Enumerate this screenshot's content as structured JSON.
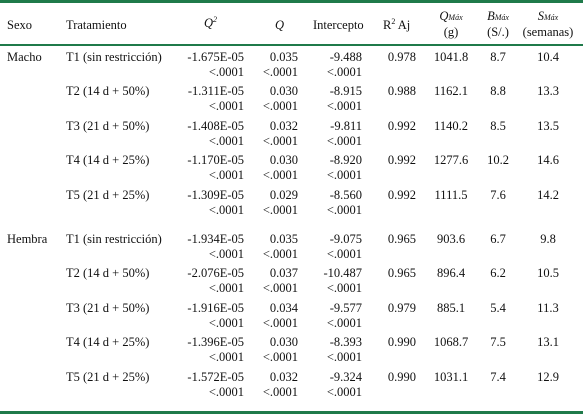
{
  "header": {
    "sexo": "Sexo",
    "tratamiento": "Tratamiento",
    "q2": "Q",
    "q2_sup": "2",
    "q": "Q",
    "intercepto": "Intercepto",
    "r2": "R",
    "r2_sup": "2",
    "r2_suffix": " Aj",
    "qmax": "Q",
    "qmax_sub": "Máx",
    "qmax_unit": "(g)",
    "bmax": "B",
    "bmax_sub": "Máx",
    "bmax_unit": "(S/.)",
    "smax": "S",
    "smax_sub": "Máx",
    "smax_unit": "(semanas)"
  },
  "groups": [
    {
      "sexo": "Macho",
      "rows": [
        {
          "tratamiento": "T1 (sin restricción)",
          "q2": "-1.675E-05",
          "q2_p": "<.0001",
          "q": "0.035",
          "q_p": "<.0001",
          "intercepto": "-9.488",
          "intercepto_p": "<.0001",
          "r2": "0.978",
          "qmax": "1041.8",
          "bmax": "8.7",
          "smax": "10.4"
        },
        {
          "tratamiento": "T2 (14 d + 50%)",
          "q2": "-1.311E-05",
          "q2_p": "<.0001",
          "q": "0.030",
          "q_p": "<.0001",
          "intercepto": "-8.915",
          "intercepto_p": "<.0001",
          "r2": "0.988",
          "qmax": "1162.1",
          "bmax": "8.8",
          "smax": "13.3"
        },
        {
          "tratamiento": "T3 (21 d + 50%)",
          "q2": "-1.408E-05",
          "q2_p": "<.0001",
          "q": "0.032",
          "q_p": "<.0001",
          "intercepto": "-9.811",
          "intercepto_p": "<.0001",
          "r2": "0.992",
          "qmax": "1140.2",
          "bmax": "8.5",
          "smax": "13.5"
        },
        {
          "tratamiento": "T4 (14 d + 25%)",
          "q2": "-1.170E-05",
          "q2_p": "<.0001",
          "q": "0.030",
          "q_p": "<.0001",
          "intercepto": "-8.920",
          "intercepto_p": "<.0001",
          "r2": "0.992",
          "qmax": "1277.6",
          "bmax": "10.2",
          "smax": "14.6"
        },
        {
          "tratamiento": "T5 (21 d + 25%)",
          "q2": "-1.309E-05",
          "q2_p": "<.0001",
          "q": "0.029",
          "q_p": "<.0001",
          "intercepto": "-8.560",
          "intercepto_p": "<.0001",
          "r2": "0.992",
          "qmax": "1111.5",
          "bmax": "7.6",
          "smax": "14.2"
        }
      ]
    },
    {
      "sexo": "Hembra",
      "rows": [
        {
          "tratamiento": "T1 (sin restricción)",
          "q2": "-1.934E-05",
          "q2_p": "<.0001",
          "q": "0.035",
          "q_p": "<.0001",
          "intercepto": "-9.075",
          "intercepto_p": "<.0001",
          "r2": "0.965",
          "qmax": "903.6",
          "bmax": "6.7",
          "smax": "9.8"
        },
        {
          "tratamiento": "T2 (14 d + 50%)",
          "q2": "-2.076E-05",
          "q2_p": "<.0001",
          "q": "0.037",
          "q_p": "<.0001",
          "intercepto": "-10.487",
          "intercepto_p": "<.0001",
          "r2": "0.965",
          "qmax": "896.4",
          "bmax": "6.2",
          "smax": "10.5"
        },
        {
          "tratamiento": "T3 (21 d + 50%)",
          "q2": "-1.916E-05",
          "q2_p": "<.0001",
          "q": "0.034",
          "q_p": "<.0001",
          "intercepto": "-9.577",
          "intercepto_p": "<.0001",
          "r2": "0.979",
          "qmax": "885.1",
          "bmax": "5.4",
          "smax": "11.3"
        },
        {
          "tratamiento": "T4 (14 d + 25%)",
          "q2": "-1.396E-05",
          "q2_p": "<.0001",
          "q": "0.030",
          "q_p": "<.0001",
          "intercepto": "-8.393",
          "intercepto_p": "<.0001",
          "r2": "0.990",
          "qmax": "1068.7",
          "bmax": "7.5",
          "smax": "13.1"
        },
        {
          "tratamiento": "T5 (21 d + 25%)",
          "q2": "-1.572E-05",
          "q2_p": "<.0001",
          "q": "0.032",
          "q_p": "<.0001",
          "intercepto": "-9.324",
          "intercepto_p": "<.0001",
          "r2": "0.990",
          "qmax": "1031.1",
          "bmax": "7.4",
          "smax": "12.9"
        }
      ]
    }
  ]
}
